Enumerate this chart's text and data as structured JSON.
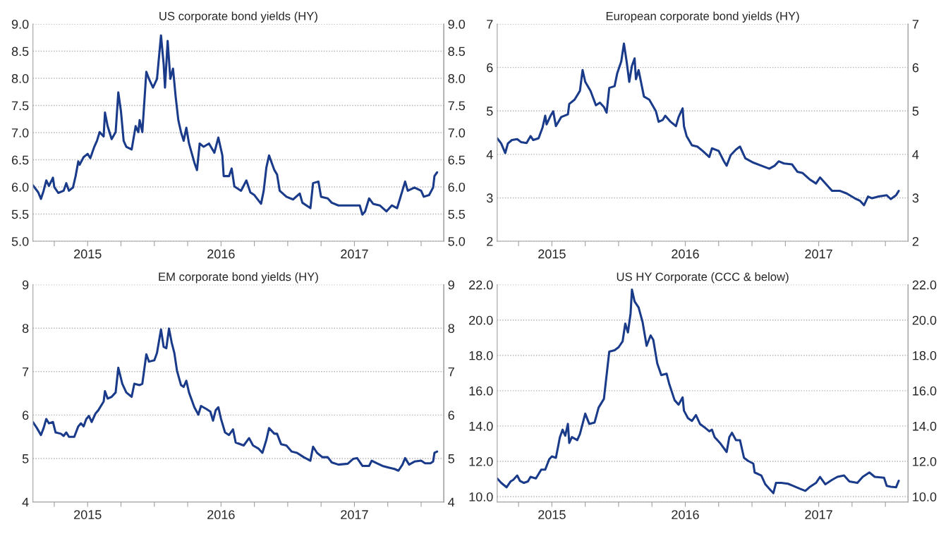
{
  "chart_data": [
    {
      "type": "line",
      "title": "US corporate bond yields (HY)",
      "grid": "y",
      "line_style": "solid",
      "marker": "none",
      "x": [
        2015.09,
        2015.13,
        2015.15,
        2015.17,
        2015.19,
        2015.21,
        2015.24,
        2015.25,
        2015.28,
        2015.32,
        2015.34,
        2015.36,
        2015.39,
        2015.41,
        2015.43,
        2015.44,
        2015.47,
        2015.5,
        2015.52,
        2015.55,
        2015.57,
        2015.59,
        2015.62,
        2015.63,
        2015.65,
        2015.68,
        2015.71,
        2015.73,
        2015.75,
        2015.77,
        2015.79,
        2015.83,
        2015.86,
        2015.88,
        2015.89,
        2015.91,
        2015.94,
        2015.96,
        2015.99,
        2016.02,
        2016.05,
        2016.07,
        2016.08,
        2016.1,
        2016.12,
        2016.14,
        2016.16,
        2016.18,
        2016.2,
        2016.22,
        2016.24,
        2016.26,
        2016.3,
        2016.32,
        2016.34,
        2016.37,
        2016.41,
        2016.45,
        2016.48,
        2016.51,
        2016.52,
        2016.56,
        2016.58,
        2016.6,
        2016.65,
        2016.69,
        2016.72,
        2016.75,
        2016.8,
        2016.82,
        2016.84,
        2016.86,
        2016.9,
        2016.92,
        2016.94,
        2016.99,
        2017.04,
        2017.09,
        2017.11,
        2017.17,
        2017.19,
        2017.23,
        2017.25,
        2017.3,
        2017.33,
        2017.38,
        2017.45,
        2017.5,
        2017.54,
        2017.56,
        2017.58,
        2017.61,
        2017.64,
        2017.69,
        2017.74,
        2017.78,
        2017.82,
        2017.84,
        2017.88,
        2017.9,
        2017.95,
        2018.0,
        2018.02,
        2018.06,
        2018.09,
        2018.1,
        2018.12
      ],
      "series": [
        {
          "color": "#1a3a8a",
          "values": [
            6.03,
            5.9,
            5.78,
            5.93,
            6.12,
            6.02,
            6.17,
            6.0,
            5.89,
            5.93,
            6.07,
            5.93,
            5.99,
            6.2,
            6.47,
            6.41,
            6.55,
            6.61,
            6.53,
            6.74,
            6.85,
            7.01,
            6.93,
            7.37,
            7.12,
            6.88,
            7.01,
            7.74,
            7.39,
            6.85,
            6.74,
            6.69,
            7.12,
            7.01,
            7.23,
            7.01,
            8.12,
            7.99,
            7.83,
            7.99,
            8.79,
            8.26,
            7.83,
            8.69,
            7.99,
            8.18,
            7.66,
            7.23,
            7.01,
            6.85,
            7.09,
            6.8,
            6.45,
            6.31,
            6.8,
            6.74,
            6.8,
            6.63,
            6.91,
            6.58,
            6.2,
            6.2,
            6.34,
            6.01,
            5.93,
            6.12,
            5.9,
            5.85,
            5.69,
            5.93,
            6.36,
            6.58,
            6.31,
            6.23,
            5.93,
            5.82,
            5.77,
            5.88,
            5.71,
            5.61,
            6.07,
            6.1,
            5.82,
            5.79,
            5.71,
            5.66,
            5.66,
            5.66,
            5.66,
            5.49,
            5.55,
            5.79,
            5.69,
            5.66,
            5.55,
            5.66,
            5.61,
            5.77,
            6.1,
            5.93,
            5.99,
            5.93,
            5.82,
            5.85,
            5.99,
            6.2,
            6.27
          ]
        }
      ],
      "xlim": [
        2015.09,
        2018.17
      ],
      "xticks": [
        {
          "value": 2015.25,
          "label": null
        },
        {
          "value": 2015.5,
          "label": "2015"
        },
        {
          "value": 2015.75,
          "label": null
        },
        {
          "value": 2016,
          "label": null
        },
        {
          "value": 2016.25,
          "label": null
        },
        {
          "value": 2016.5,
          "label": "2016"
        },
        {
          "value": 2016.75,
          "label": null
        },
        {
          "value": 2017,
          "label": null
        },
        {
          "value": 2017.25,
          "label": null
        },
        {
          "value": 2017.5,
          "label": "2017"
        },
        {
          "value": 2017.75,
          "label": null
        },
        {
          "value": 2018,
          "label": null
        }
      ],
      "ylim": [
        5,
        9
      ],
      "yticks": [
        {
          "value": 5,
          "label": "5.0"
        },
        {
          "value": 5.5,
          "label": "5.5"
        },
        {
          "value": 6,
          "label": "6.0"
        },
        {
          "value": 6.5,
          "label": "6.5"
        },
        {
          "value": 7,
          "label": "7.0"
        },
        {
          "value": 7.5,
          "label": "7.5"
        },
        {
          "value": 8,
          "label": "8.0"
        },
        {
          "value": 8.5,
          "label": "8.5"
        },
        {
          "value": 9,
          "label": "9.0"
        }
      ],
      "y2lim": [
        5,
        9
      ],
      "y2ticks": [
        {
          "value": 5,
          "label": "5.0"
        },
        {
          "value": 5.5,
          "label": "5.5"
        },
        {
          "value": 6,
          "label": "6.0"
        },
        {
          "value": 6.5,
          "label": "6.5"
        },
        {
          "value": 7,
          "label": "7.0"
        },
        {
          "value": 7.5,
          "label": "7.5"
        },
        {
          "value": 8,
          "label": "8.0"
        },
        {
          "value": 8.5,
          "label": "8.5"
        },
        {
          "value": 9,
          "label": "9.0"
        }
      ]
    },
    {
      "type": "line",
      "title": "European corporate bond yields (HY)",
      "grid": "y",
      "line_style": "solid",
      "marker": "none",
      "x": [
        2015.09,
        2015.12,
        2015.15,
        2015.17,
        2015.2,
        2015.24,
        2015.27,
        2015.31,
        2015.34,
        2015.36,
        2015.4,
        2015.43,
        2015.45,
        2015.46,
        2015.49,
        2015.51,
        2015.53,
        2015.57,
        2015.62,
        2015.63,
        2015.67,
        2015.71,
        2015.73,
        2015.75,
        2015.79,
        2015.83,
        2015.86,
        2015.89,
        2015.91,
        2015.93,
        2015.97,
        2015.99,
        2016.02,
        2016.04,
        2016.06,
        2016.08,
        2016.1,
        2016.12,
        2016.13,
        2016.15,
        2016.19,
        2016.23,
        2016.28,
        2016.3,
        2016.33,
        2016.35,
        2016.39,
        2016.43,
        2016.45,
        2016.48,
        2016.49,
        2016.51,
        2016.55,
        2016.59,
        2016.63,
        2016.68,
        2016.7,
        2016.75,
        2016.79,
        2016.81,
        2016.84,
        2016.88,
        2016.91,
        2016.95,
        2017.01,
        2017.07,
        2017.13,
        2017.17,
        2017.2,
        2017.24,
        2017.3,
        2017.34,
        2017.38,
        2017.43,
        2017.48,
        2017.51,
        2017.56,
        2017.6,
        2017.66,
        2017.71,
        2017.77,
        2017.81,
        2017.84,
        2017.87,
        2017.9,
        2017.95,
        2018.01,
        2018.04,
        2018.08,
        2018.1
      ],
      "series": [
        {
          "color": "#1a3a8a",
          "values": [
            4.37,
            4.25,
            4.03,
            4.25,
            4.33,
            4.35,
            4.28,
            4.26,
            4.42,
            4.33,
            4.37,
            4.62,
            4.89,
            4.69,
            4.89,
            4.99,
            4.65,
            4.86,
            4.92,
            5.16,
            5.26,
            5.46,
            5.94,
            5.67,
            5.46,
            5.13,
            5.19,
            5.09,
            4.96,
            5.53,
            5.57,
            5.87,
            6.14,
            6.55,
            6.14,
            5.67,
            6.04,
            6.21,
            5.73,
            5.94,
            5.33,
            5.26,
            4.99,
            4.75,
            4.79,
            4.89,
            4.75,
            4.65,
            4.86,
            5.06,
            4.65,
            4.42,
            4.21,
            4.18,
            4.08,
            3.94,
            4.14,
            4.08,
            3.84,
            3.74,
            3.98,
            4.11,
            4.18,
            3.91,
            3.81,
            3.74,
            3.67,
            3.74,
            3.84,
            3.79,
            3.77,
            3.6,
            3.57,
            3.43,
            3.33,
            3.47,
            3.3,
            3.16,
            3.16,
            3.1,
            2.99,
            2.93,
            2.83,
            3.03,
            2.99,
            3.03,
            3.06,
            2.97,
            3.06,
            3.16
          ]
        }
      ],
      "xlim": [
        2015.09,
        2018.17
      ],
      "xticks": [
        {
          "value": 2015.25,
          "label": null
        },
        {
          "value": 2015.5,
          "label": "2015"
        },
        {
          "value": 2015.75,
          "label": null
        },
        {
          "value": 2016,
          "label": null
        },
        {
          "value": 2016.25,
          "label": null
        },
        {
          "value": 2016.5,
          "label": "2016"
        },
        {
          "value": 2016.75,
          "label": null
        },
        {
          "value": 2017,
          "label": null
        },
        {
          "value": 2017.25,
          "label": null
        },
        {
          "value": 2017.5,
          "label": "2017"
        },
        {
          "value": 2017.75,
          "label": null
        },
        {
          "value": 2018,
          "label": null
        }
      ],
      "ylim": [
        2,
        7
      ],
      "yticks": [
        2,
        3,
        4,
        5,
        6,
        7
      ],
      "y2lim": [
        2,
        7
      ],
      "y2ticks": [
        2,
        3,
        4,
        5,
        6,
        7
      ]
    },
    {
      "type": "line",
      "title": "EM corporate bond yields (HY)",
      "grid": "y",
      "line_style": "solid",
      "marker": "none",
      "x": [
        2015.09,
        2015.12,
        2015.15,
        2015.17,
        2015.19,
        2015.21,
        2015.24,
        2015.26,
        2015.3,
        2015.32,
        2015.34,
        2015.36,
        2015.4,
        2015.43,
        2015.45,
        2015.47,
        2015.49,
        2015.51,
        2015.53,
        2015.56,
        2015.58,
        2015.62,
        2015.63,
        2015.65,
        2015.68,
        2015.71,
        2015.73,
        2015.76,
        2015.79,
        2015.83,
        2015.85,
        2015.89,
        2015.91,
        2015.94,
        2015.96,
        2016.0,
        2016.02,
        2016.05,
        2016.07,
        2016.09,
        2016.11,
        2016.13,
        2016.15,
        2016.17,
        2016.2,
        2016.22,
        2016.24,
        2016.26,
        2016.3,
        2016.33,
        2016.35,
        2016.39,
        2016.42,
        2016.44,
        2016.46,
        2016.48,
        2016.5,
        2016.53,
        2016.56,
        2016.59,
        2016.61,
        2016.67,
        2016.71,
        2016.74,
        2016.78,
        2016.81,
        2016.84,
        2016.86,
        2016.9,
        2016.92,
        2016.95,
        2016.99,
        2017.03,
        2017.07,
        2017.12,
        2017.17,
        2017.19,
        2017.22,
        2017.26,
        2017.3,
        2017.33,
        2017.38,
        2017.45,
        2017.49,
        2017.52,
        2017.56,
        2017.61,
        2017.63,
        2017.67,
        2017.71,
        2017.76,
        2017.8,
        2017.83,
        2017.86,
        2017.88,
        2017.91,
        2017.95,
        2018.0,
        2018.03,
        2018.07,
        2018.09,
        2018.1,
        2018.12
      ],
      "series": [
        {
          "color": "#1a3a8a",
          "values": [
            5.84,
            5.7,
            5.54,
            5.7,
            5.91,
            5.81,
            5.84,
            5.6,
            5.57,
            5.52,
            5.6,
            5.5,
            5.5,
            5.74,
            5.81,
            5.74,
            5.91,
            5.98,
            5.84,
            6.04,
            6.11,
            6.31,
            6.55,
            6.38,
            6.42,
            6.52,
            7.09,
            6.72,
            6.52,
            6.42,
            6.72,
            6.69,
            6.72,
            7.4,
            7.23,
            7.26,
            7.43,
            7.97,
            7.57,
            7.54,
            7.99,
            7.67,
            7.43,
            7.02,
            6.69,
            6.65,
            6.79,
            6.52,
            6.18,
            6.01,
            6.21,
            6.14,
            6.08,
            5.87,
            6.11,
            6.18,
            5.91,
            5.6,
            5.54,
            5.67,
            5.37,
            5.3,
            5.47,
            5.3,
            5.23,
            5.13,
            5.43,
            5.7,
            5.57,
            5.57,
            5.33,
            5.3,
            5.16,
            5.13,
            5.03,
            4.95,
            5.27,
            5.13,
            5.03,
            5.03,
            4.91,
            4.86,
            4.88,
            4.99,
            5.01,
            4.83,
            4.83,
            4.95,
            4.89,
            4.83,
            4.79,
            4.76,
            4.72,
            4.86,
            5.01,
            4.86,
            4.93,
            4.95,
            4.89,
            4.89,
            4.93,
            5.13,
            5.16
          ]
        }
      ],
      "xlim": [
        2015.09,
        2018.17
      ],
      "xticks": [
        {
          "value": 2015.25,
          "label": null
        },
        {
          "value": 2015.5,
          "label": "2015"
        },
        {
          "value": 2015.75,
          "label": null
        },
        {
          "value": 2016,
          "label": null
        },
        {
          "value": 2016.25,
          "label": null
        },
        {
          "value": 2016.5,
          "label": "2016"
        },
        {
          "value": 2016.75,
          "label": null
        },
        {
          "value": 2017,
          "label": null
        },
        {
          "value": 2017.25,
          "label": null
        },
        {
          "value": 2017.5,
          "label": "2017"
        },
        {
          "value": 2017.75,
          "label": null
        },
        {
          "value": 2018,
          "label": null
        }
      ],
      "ylim": [
        4,
        9
      ],
      "yticks": [
        4,
        5,
        6,
        7,
        8,
        9
      ],
      "y2lim": [
        4,
        9
      ],
      "y2ticks": [
        4,
        5,
        6,
        7,
        8,
        9
      ]
    },
    {
      "type": "line",
      "title": "US HY Corporate (CCC & below)",
      "grid": "y",
      "line_style": "solid",
      "marker": "none",
      "x": [
        2015.09,
        2015.12,
        2015.16,
        2015.19,
        2015.21,
        2015.24,
        2015.26,
        2015.29,
        2015.32,
        2015.34,
        2015.38,
        2015.42,
        2015.45,
        2015.48,
        2015.5,
        2015.53,
        2015.56,
        2015.58,
        2015.6,
        2015.62,
        2015.63,
        2015.65,
        2015.69,
        2015.71,
        2015.75,
        2015.78,
        2015.82,
        2015.85,
        2015.89,
        2015.91,
        2015.93,
        2015.97,
        2016.0,
        2016.03,
        2016.05,
        2016.07,
        2016.09,
        2016.1,
        2016.12,
        2016.15,
        2016.18,
        2016.21,
        2016.24,
        2016.26,
        2016.29,
        2016.32,
        2016.36,
        2016.38,
        2016.42,
        2016.45,
        2016.48,
        2016.49,
        2016.52,
        2016.55,
        2016.58,
        2016.61,
        2016.64,
        2016.68,
        2016.7,
        2016.72,
        2016.76,
        2016.81,
        2016.83,
        2016.85,
        2016.88,
        2016.91,
        2016.94,
        2016.97,
        2017.01,
        2017.02,
        2017.07,
        2017.1,
        2017.14,
        2017.16,
        2017.18,
        2017.22,
        2017.27,
        2017.31,
        2017.36,
        2017.4,
        2017.43,
        2017.48,
        2017.51,
        2017.55,
        2017.6,
        2017.64,
        2017.69,
        2017.73,
        2017.79,
        2017.83,
        2017.88,
        2017.92,
        2017.99,
        2018.01,
        2018.04,
        2018.08,
        2018.1
      ],
      "series": [
        {
          "color": "#1a3a8a",
          "values": [
            11.03,
            10.78,
            10.53,
            10.86,
            10.95,
            11.2,
            10.9,
            10.78,
            10.86,
            11.12,
            11.03,
            11.53,
            11.53,
            12.12,
            12.28,
            12.2,
            13.37,
            13.79,
            13.45,
            14.12,
            13.04,
            13.37,
            13.2,
            13.54,
            14.7,
            14.12,
            14.2,
            15.04,
            15.54,
            16.88,
            18.21,
            18.29,
            18.46,
            18.79,
            19.8,
            19.3,
            20.38,
            21.72,
            21.05,
            20.71,
            19.88,
            18.54,
            19.13,
            18.88,
            17.54,
            16.88,
            16.96,
            16.37,
            15.46,
            15.21,
            15.62,
            14.87,
            14.45,
            14.29,
            14.62,
            14.12,
            13.95,
            13.7,
            13.79,
            13.37,
            13.04,
            12.53,
            13.37,
            13.62,
            13.2,
            13.2,
            12.2,
            12.03,
            11.87,
            11.37,
            11.2,
            10.7,
            10.36,
            10.2,
            10.78,
            10.78,
            10.73,
            10.61,
            10.45,
            10.33,
            10.53,
            10.78,
            11.12,
            10.7,
            10.95,
            11.12,
            11.2,
            10.86,
            10.78,
            11.12,
            11.37,
            11.12,
            11.07,
            10.61,
            10.56,
            10.53,
            10.9
          ]
        }
      ],
      "xlim": [
        2015.09,
        2018.17
      ],
      "xticks": [
        {
          "value": 2015.25,
          "label": null
        },
        {
          "value": 2015.5,
          "label": "2015"
        },
        {
          "value": 2015.75,
          "label": null
        },
        {
          "value": 2016,
          "label": null
        },
        {
          "value": 2016.25,
          "label": null
        },
        {
          "value": 2016.5,
          "label": "2016"
        },
        {
          "value": 2016.75,
          "label": null
        },
        {
          "value": 2017,
          "label": null
        },
        {
          "value": 2017.25,
          "label": null
        },
        {
          "value": 2017.5,
          "label": "2017"
        },
        {
          "value": 2017.75,
          "label": null
        },
        {
          "value": 2018,
          "label": null
        }
      ],
      "ylim": [
        9.7,
        22
      ],
      "yticks": [
        {
          "value": 10,
          "label": "10.0"
        },
        {
          "value": 12,
          "label": "12.0"
        },
        {
          "value": 14,
          "label": "14.0"
        },
        {
          "value": 16,
          "label": "16.0"
        },
        {
          "value": 18,
          "label": "18.0"
        },
        {
          "value": 20,
          "label": "20.0"
        },
        {
          "value": 22,
          "label": "22.0"
        }
      ],
      "y2lim": [
        9.7,
        22
      ],
      "y2ticks": [
        {
          "value": 10,
          "label": "10.0"
        },
        {
          "value": 12,
          "label": "12.0"
        },
        {
          "value": 14,
          "label": "14.0"
        },
        {
          "value": 16,
          "label": "16.0"
        },
        {
          "value": 18,
          "label": "18.0"
        },
        {
          "value": 20,
          "label": "20.0"
        },
        {
          "value": 22,
          "label": "22.0"
        }
      ]
    }
  ]
}
